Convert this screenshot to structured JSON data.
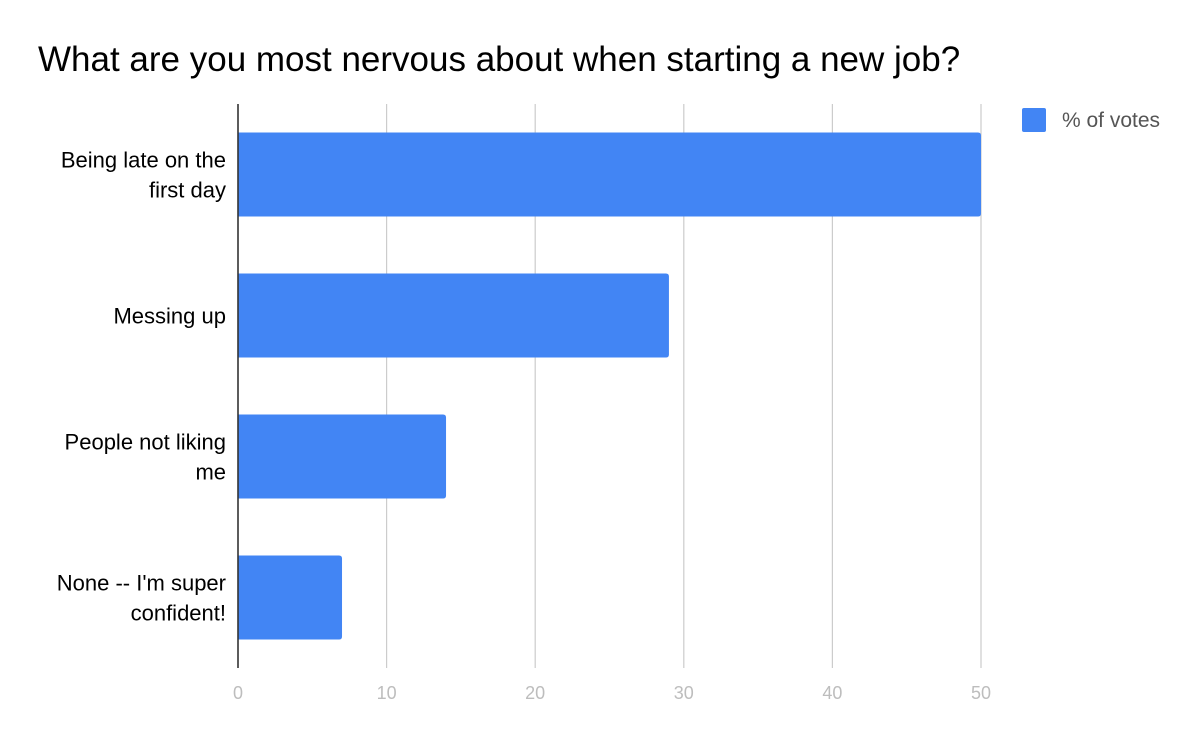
{
  "chart_data": {
    "type": "bar",
    "orientation": "horizontal",
    "title": "What are you most nervous about when starting a new job?",
    "categories": [
      [
        "Being late on the",
        "first day"
      ],
      [
        "Messing up"
      ],
      [
        "People not liking",
        "me"
      ],
      [
        "None -- I'm super",
        "confident!"
      ]
    ],
    "series": [
      {
        "name": "% of votes",
        "color": "#4285f4",
        "values": [
          50,
          29,
          14,
          7
        ]
      }
    ],
    "xlim": [
      0,
      50
    ],
    "xticks": [
      0,
      10,
      20,
      30,
      40,
      50
    ],
    "xlabel": "",
    "ylabel": "",
    "grid": true,
    "grid_color": "#cccccc",
    "axis_color": "#333333",
    "legend_position": "top-right"
  }
}
